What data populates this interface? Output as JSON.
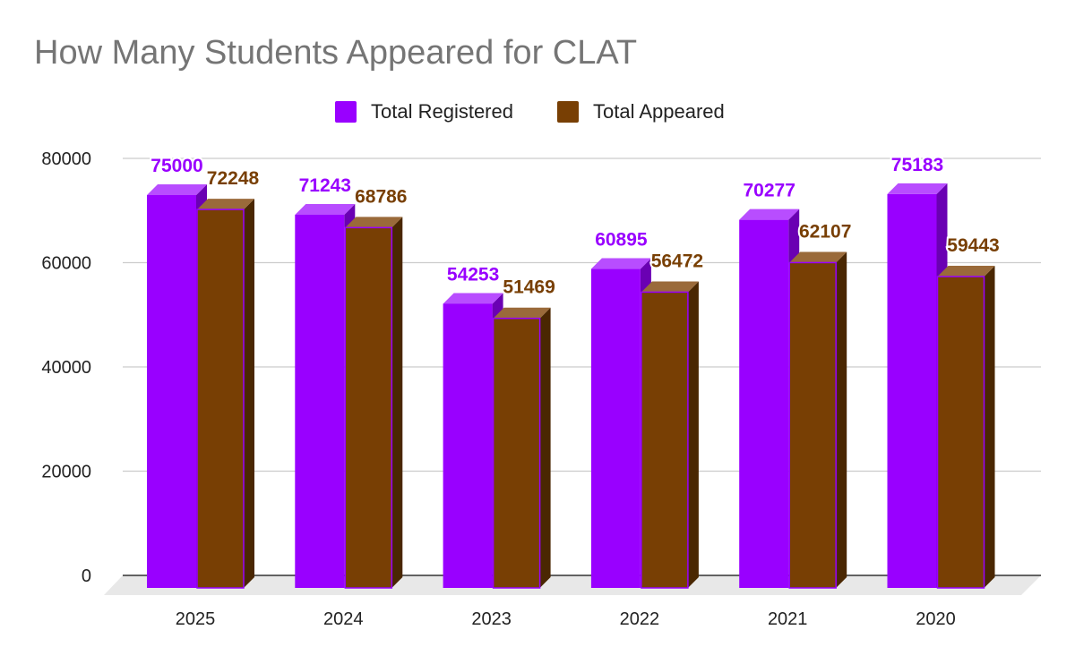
{
  "chart_data": {
    "type": "bar",
    "title": "How Many Students Appeared for CLAT",
    "categories": [
      "2025",
      "2024",
      "2023",
      "2022",
      "2021",
      "2020"
    ],
    "series": [
      {
        "name": "Total Registered",
        "values": [
          75000,
          71243,
          54253,
          60895,
          70277,
          75183
        ],
        "color": "#9900ff"
      },
      {
        "name": "Total Appeared",
        "values": [
          72248,
          68786,
          51469,
          56472,
          62107,
          59443
        ],
        "color": "#783f04"
      }
    ],
    "ylim": [
      0,
      80000
    ],
    "yticks": [
      "0",
      "20000",
      "40000",
      "60000",
      "80000"
    ],
    "grid": true,
    "legend": "top",
    "style": "3d",
    "xlabel": "",
    "ylabel": ""
  }
}
